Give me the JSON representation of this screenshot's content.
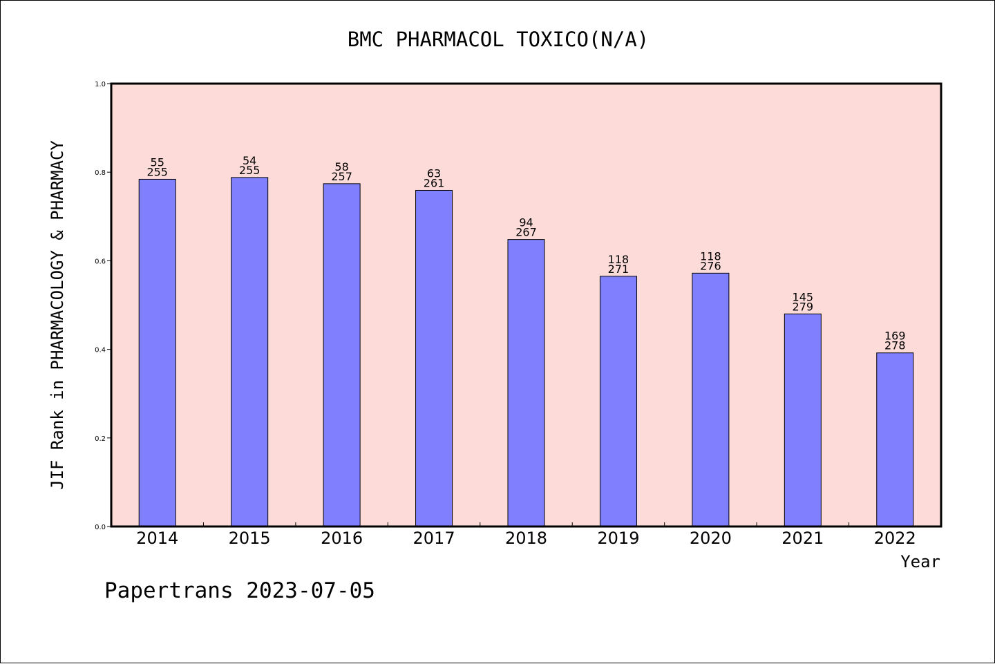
{
  "chart_data": {
    "type": "bar",
    "title": "BMC PHARMACOL TOXICO(N/A)",
    "xlabel": "Year",
    "ylabel": "JIF Rank in PHARMACOLOGY & PHARMACY",
    "ylim": [
      0,
      1.0
    ],
    "yticks": [
      "0.0",
      "0.2",
      "0.4",
      "0.6",
      "0.8",
      "1.0"
    ],
    "categories": [
      "2014",
      "2015",
      "2016",
      "2017",
      "2018",
      "2019",
      "2020",
      "2021",
      "2022"
    ],
    "values": [
      0.784,
      0.788,
      0.774,
      0.759,
      0.648,
      0.565,
      0.572,
      0.48,
      0.392
    ],
    "rank": [
      55,
      54,
      58,
      63,
      94,
      118,
      118,
      145,
      169
    ],
    "total": [
      255,
      255,
      257,
      261,
      267,
      271,
      276,
      279,
      278
    ],
    "grid": false,
    "colors": {
      "plot_background": "#fddbd8",
      "bar_fill": "#8080ff",
      "bar_stroke": "#000000"
    }
  },
  "footer": "Papertrans 2023-07-05"
}
